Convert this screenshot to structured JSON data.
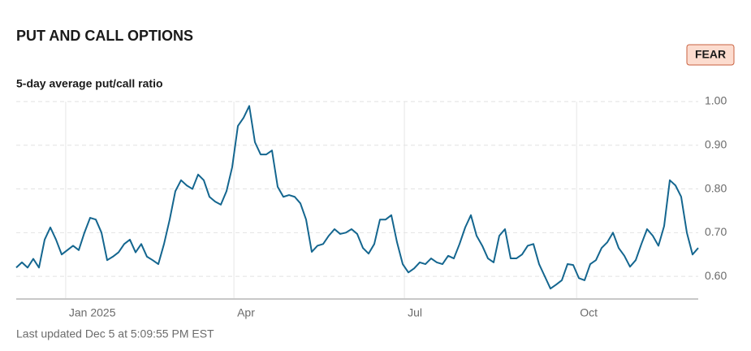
{
  "chart_data": {
    "type": "line",
    "title": "PUT AND CALL OPTIONS",
    "badge": "FEAR",
    "subtitle": "5-day average put/call ratio",
    "footer": "Last updated Dec 5 at 5:09:55 PM EST",
    "color": "#14668f",
    "grid": true,
    "xlim": [
      0,
      120
    ],
    "xticks": [
      {
        "value": 8.7,
        "label": "Jan 2025"
      },
      {
        "value": 38.3,
        "label": "Apr"
      },
      {
        "value": 68.3,
        "label": "Jul"
      },
      {
        "value": 98.6,
        "label": "Oct"
      }
    ],
    "ylim": [
      0.55,
      1.0
    ],
    "yticks": [
      {
        "value": 0.6,
        "label": "0.60"
      },
      {
        "value": 0.7,
        "label": "0.70"
      },
      {
        "value": 0.8,
        "label": "0.80"
      },
      {
        "value": 0.9,
        "label": "0.90"
      },
      {
        "value": 1.0,
        "label": "1.00"
      }
    ],
    "values": [
      0.62,
      0.632,
      0.62,
      0.64,
      0.62,
      0.684,
      0.712,
      0.684,
      0.65,
      0.66,
      0.67,
      0.66,
      0.7,
      0.734,
      0.73,
      0.7,
      0.637,
      0.645,
      0.655,
      0.674,
      0.684,
      0.655,
      0.674,
      0.645,
      0.637,
      0.628,
      0.674,
      0.73,
      0.795,
      0.82,
      0.808,
      0.8,
      0.833,
      0.82,
      0.782,
      0.771,
      0.764,
      0.795,
      0.85,
      0.944,
      0.963,
      0.99,
      0.907,
      0.879,
      0.879,
      0.888,
      0.805,
      0.782,
      0.786,
      0.782,
      0.767,
      0.73,
      0.656,
      0.67,
      0.674,
      0.693,
      0.708,
      0.697,
      0.7,
      0.708,
      0.697,
      0.665,
      0.652,
      0.674,
      0.73,
      0.73,
      0.74,
      0.678,
      0.628,
      0.609,
      0.618,
      0.632,
      0.628,
      0.641,
      0.632,
      0.628,
      0.647,
      0.641,
      0.674,
      0.712,
      0.74,
      0.693,
      0.67,
      0.641,
      0.632,
      0.693,
      0.708,
      0.641,
      0.641,
      0.65,
      0.67,
      0.674,
      0.628,
      0.6,
      0.572,
      0.581,
      0.591,
      0.628,
      0.626,
      0.596,
      0.591,
      0.628,
      0.637,
      0.665,
      0.678,
      0.7,
      0.665,
      0.647,
      0.622,
      0.637,
      0.674,
      0.708,
      0.693,
      0.67,
      0.715,
      0.82,
      0.808,
      0.782,
      0.7,
      0.65,
      0.665
    ]
  }
}
